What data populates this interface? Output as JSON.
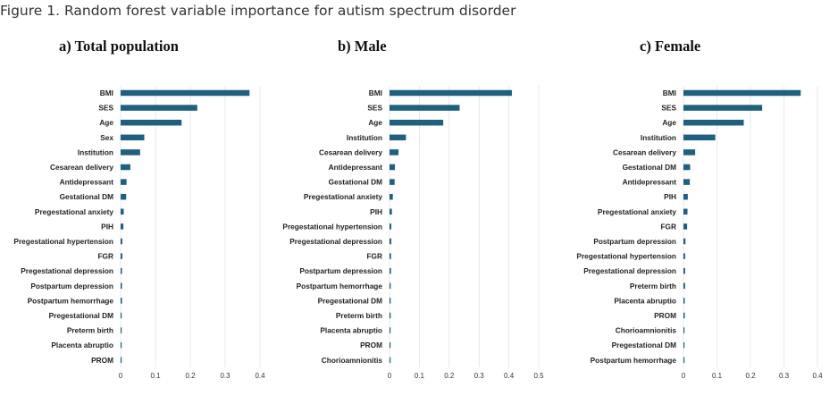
{
  "figure": {
    "caption": "Figure 1. Random forest variable importance for autism spectrum disorder"
  },
  "bar_color": "#1f5f7f",
  "grid_color": "#d9d9d9",
  "chart_data": [
    {
      "type": "bar",
      "orientation": "horizontal",
      "title": "a) Total population",
      "categories": [
        "BMI",
        "SES",
        "Age",
        "Sex",
        "Institution",
        "Cesarean delivery",
        "Antidepressant",
        "Gestational DM",
        "Pregestational anxiety",
        "PIH",
        "Pregestational hypertension",
        "FGR",
        "Pregestational depression",
        "Postpartum depression",
        "Postpartum hemorrhage",
        "Pregestational DM",
        "Preterm birth",
        "Placenta abruptio",
        "PROM"
      ],
      "values": [
        0.37,
        0.22,
        0.175,
        0.068,
        0.056,
        0.028,
        0.017,
        0.016,
        0.009,
        0.008,
        0.005,
        0.005,
        0.004,
        0.004,
        0.004,
        0.003,
        0.003,
        0.002,
        0.001
      ],
      "xlim": [
        0,
        0.4
      ],
      "xticks": [
        "0",
        "0.1",
        "0.2",
        "0.3",
        "0.4"
      ],
      "grid": "vertical"
    },
    {
      "type": "bar",
      "orientation": "horizontal",
      "title": "b) Male",
      "categories": [
        "BMI",
        "SES",
        "Age",
        "Institution",
        "Cesarean delivery",
        "Antidepressant",
        "Gestational DM",
        "Pregestational anxiety",
        "PIH",
        "Pregestational hypertension",
        "Pregestational depression",
        "FGR",
        "Postpartum depression",
        "Postpartum hemorrhage",
        "Pregestational DM",
        "Preterm birth",
        "Placenta abruptio",
        "PROM",
        "Chorioamnionitis"
      ],
      "values": [
        0.41,
        0.235,
        0.18,
        0.055,
        0.03,
        0.018,
        0.017,
        0.011,
        0.008,
        0.006,
        0.006,
        0.005,
        0.005,
        0.004,
        0.004,
        0.004,
        0.003,
        0.003,
        0.002
      ],
      "xlim": [
        0,
        0.5
      ],
      "xticks": [
        "0",
        "0.1",
        "0.2",
        "0.3",
        "0.4",
        "0.5"
      ],
      "grid": "vertical"
    },
    {
      "type": "bar",
      "orientation": "horizontal",
      "title": "c) Female",
      "categories": [
        "BMI",
        "SES",
        "Age",
        "Institution",
        "Cesarean delivery",
        "Gestational DM",
        "Antidepressant",
        "PIH",
        "Pregestational anxiety",
        "FGR",
        "Postpartum depression",
        "Pregestational hypertension",
        "Pregestational depression",
        "Preterm birth",
        "Placenta abruptio",
        "PROM",
        "Chorioamnionitis",
        "Pregestational DM",
        "Postpartum hemorrhage"
      ],
      "values": [
        0.35,
        0.235,
        0.18,
        0.095,
        0.035,
        0.02,
        0.019,
        0.013,
        0.012,
        0.011,
        0.006,
        0.005,
        0.005,
        0.005,
        0.004,
        0.004,
        0.003,
        0.003,
        0.002
      ],
      "xlim": [
        0,
        0.4
      ],
      "xticks": [
        "0",
        "0.1",
        "0.2",
        "0.3",
        "0.4"
      ],
      "grid": "vertical"
    }
  ]
}
